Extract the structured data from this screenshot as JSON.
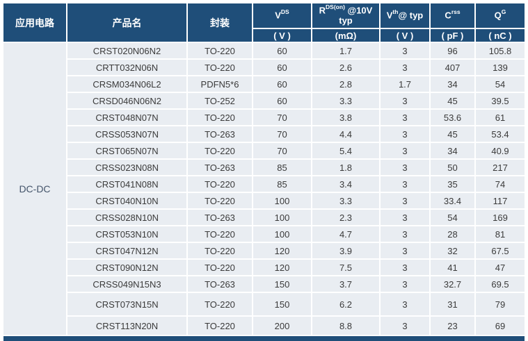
{
  "colors": {
    "header_bg": "#1F4E79",
    "row_bg": "#E9EDF2",
    "header_text": "#FFFFFF",
    "cell_text": "#3A3A3A",
    "app_text": "#44546A",
    "page_bg": "#FFFFFF"
  },
  "table": {
    "app_column": {
      "header": "应用电路",
      "value": "DC-DC"
    },
    "headers": {
      "product": "产品名",
      "package": "封装",
      "params": [
        {
          "main": "V",
          "sup": "DS",
          "rest": "",
          "unit": "( V )"
        },
        {
          "main": "R",
          "sup": "DS(on)",
          "rest": " @10V typ",
          "unit": "(mΩ)"
        },
        {
          "main": "V",
          "sup": "th",
          "rest": "@ typ",
          "unit": "( V )"
        },
        {
          "main": "C",
          "sup": "rss",
          "rest": "",
          "unit": "( pF )"
        },
        {
          "main": "Q",
          "sup": "G",
          "rest": "",
          "unit": "( nC )"
        }
      ]
    },
    "rows": [
      [
        "CRST020N06N2",
        "TO-220",
        "60",
        "1.7",
        "3",
        "96",
        "105.8"
      ],
      [
        "CRTT032N06N",
        "TO-220",
        "60",
        "2.6",
        "3",
        "407",
        "139"
      ],
      [
        "CRSM034N06L2",
        "PDFN5*6",
        "60",
        "2.8",
        "1.7",
        "34",
        "54"
      ],
      [
        "CRSD046N06N2",
        "TO-252",
        "60",
        "3.3",
        "3",
        "45",
        "39.5"
      ],
      [
        "CRST048N07N",
        "TO-220",
        "70",
        "3.8",
        "3",
        "53.6",
        "61"
      ],
      [
        "CRSS053N07N",
        "TO-263",
        "70",
        "4.4",
        "3",
        "45",
        "53.4"
      ],
      [
        "CRST065N07N",
        "TO-220",
        "70",
        "5.4",
        "3",
        "34",
        "40.9"
      ],
      [
        "CRSS023N08N",
        "TO-263",
        "85",
        "1.8",
        "3",
        "50",
        "217"
      ],
      [
        "CRST041N08N",
        "TO-220",
        "85",
        "3.4",
        "3",
        "35",
        "74"
      ],
      [
        "CRST040N10N",
        "TO-220",
        "100",
        "3.3",
        "3",
        "33.4",
        "117"
      ],
      [
        "CRSS028N10N",
        "TO-263",
        "100",
        "2.3",
        "3",
        "54",
        "169"
      ],
      [
        "CRST053N10N",
        "TO-220",
        "100",
        "4.7",
        "3",
        "28",
        "81"
      ],
      [
        "CRST047N12N",
        "TO-220",
        "120",
        "3.9",
        "3",
        "32",
        "67.5"
      ],
      [
        "CRST090N12N",
        "TO-220",
        "120",
        "7.5",
        "3",
        "41",
        "47"
      ],
      [
        "CRSS049N15N3",
        "TO-263",
        "150",
        "3.7",
        "3",
        "32.7",
        "69.5"
      ],
      [
        "CRST073N15N",
        "TO-220",
        "150",
        "6.2",
        "3",
        "31",
        "79"
      ],
      [
        "CRST113N20N",
        "TO-220",
        "200",
        "8.8",
        "3",
        "23",
        "69"
      ]
    ]
  }
}
